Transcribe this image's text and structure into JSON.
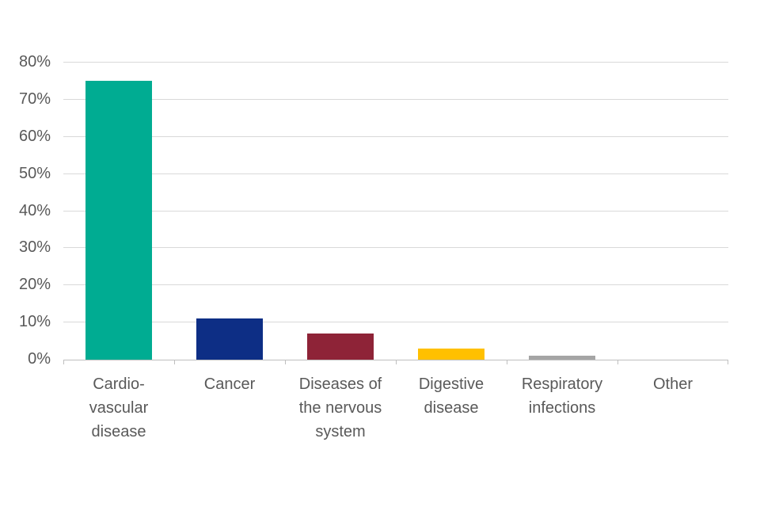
{
  "chart_data": {
    "type": "bar",
    "title": "",
    "xlabel": "",
    "ylabel": "",
    "categories": [
      "Cardio-\nvascular\ndisease",
      "Cancer",
      "Diseases of\nthe nervous\nsystem",
      "Digestive\ndisease",
      "Respiratory\ninfections",
      "Other"
    ],
    "values": [
      75,
      11,
      7,
      3,
      1,
      0
    ],
    "unit": "%",
    "bar_colors": [
      "#00ac92",
      "#0d2e85",
      "#8e2337",
      "#ffc000",
      "#a5a5a5",
      "#a5a5a5"
    ],
    "ylim": [
      0,
      80
    ],
    "ytick_step": 10,
    "ytick_labels": [
      "0%",
      "10%",
      "20%",
      "30%",
      "40%",
      "50%",
      "60%",
      "70%",
      "80%"
    ],
    "grid": true,
    "legend": false,
    "colors": {
      "gridline": "#d9d9d9",
      "axis": "#bfbfbf",
      "label_text": "#595959",
      "background": "#ffffff"
    }
  }
}
